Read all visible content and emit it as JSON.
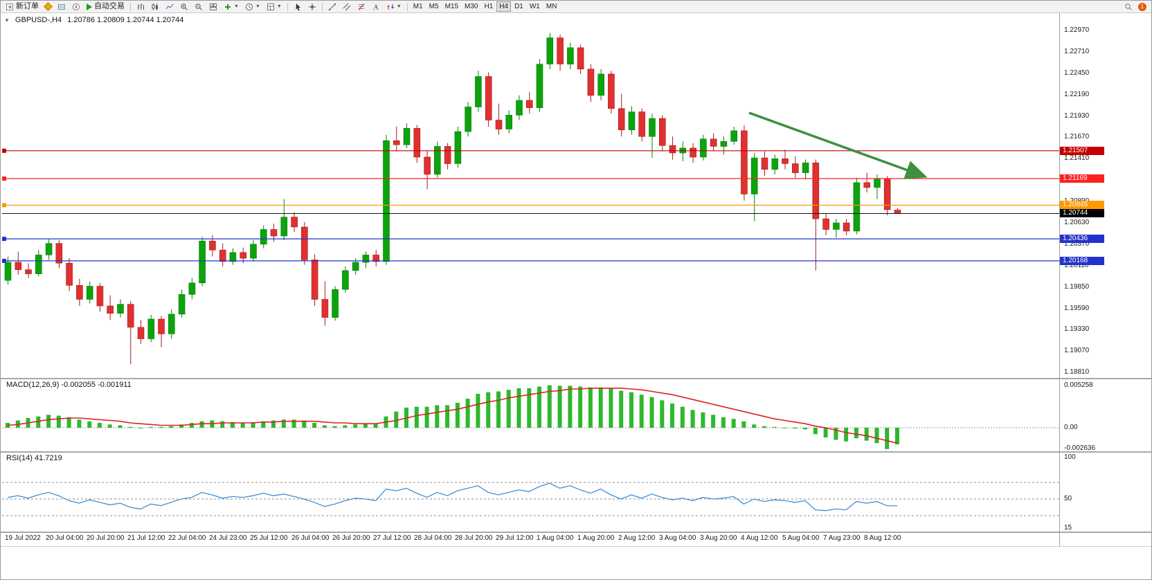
{
  "toolbar": {
    "new_order": "新订单",
    "autotrading": "自动交易",
    "timeframes": [
      "M1",
      "M5",
      "M15",
      "M30",
      "H1",
      "H4",
      "D1",
      "W1",
      "MN"
    ],
    "active_timeframe": "H4",
    "notification_count": "1"
  },
  "chart": {
    "title_symbol": "GBPUSD-,H4",
    "title_ohlc": "1.20786 1.20809 1.20744 1.20744"
  },
  "chart_data": {
    "type": "candlestick",
    "symbol": "GBPUSD-",
    "period": "H4",
    "ohlc_display": {
      "open": "1.20786",
      "high": "1.20809",
      "low": "1.20744",
      "close": "1.20744"
    },
    "colors": {
      "up": "#0ca30c",
      "up_border": "#0a7d0a",
      "down": "#e03030",
      "down_border": "#a21c1c",
      "macd_hist": "#2db82d",
      "macd_signal": "#e02020",
      "rsi_line": "#3f8fd6",
      "arrow": "#3f8f3f"
    },
    "price_axis": {
      "view_max": 1.2318,
      "view_min": 1.18745,
      "ticks": [
        "1.22970",
        "1.22710",
        "1.22450",
        "1.22190",
        "1.21930",
        "1.21670",
        "1.21410",
        "1.21150",
        "1.20890",
        "1.20630",
        "1.20370",
        "1.20110",
        "1.19850",
        "1.19590",
        "1.19330",
        "1.19070",
        "1.18810"
      ]
    },
    "x_labels": [
      "19 Jul 2022",
      "20 Jul 04:00",
      "20 Jul 20:00",
      "21 Jul 12:00",
      "22 Jul 04:00",
      "24 Jul 23:00",
      "25 Jul 12:00",
      "26 Jul 04:00",
      "26 Jul 20:00",
      "27 Jul 12:00",
      "28 Jul 04:00",
      "28 Jul 20:00",
      "29 Jul 12:00",
      "1 Aug 04:00",
      "1 Aug 20:00",
      "2 Aug 12:00",
      "3 Aug 04:00",
      "3 Aug 20:00",
      "4 Aug 12:00",
      "5 Aug 04:00",
      "7 Aug 23:00",
      "8 Aug 12:00"
    ],
    "candles": [
      [
        1.1993,
        1.2022,
        1.1988,
        1.2015
      ],
      [
        1.2015,
        1.2028,
        1.2,
        1.2006
      ],
      [
        1.2006,
        1.2014,
        1.1996,
        1.2001
      ],
      [
        1.2001,
        1.203,
        1.1998,
        1.2024
      ],
      [
        1.2024,
        1.2043,
        1.2018,
        1.2038
      ],
      [
        1.2038,
        1.2042,
        1.2008,
        1.2014
      ],
      [
        1.2014,
        1.202,
        1.198,
        1.1987
      ],
      [
        1.1987,
        1.1995,
        1.1962,
        1.197
      ],
      [
        1.197,
        1.1992,
        1.1965,
        1.1986
      ],
      [
        1.1986,
        1.199,
        1.1955,
        1.1962
      ],
      [
        1.1962,
        1.1975,
        1.1945,
        1.1953
      ],
      [
        1.1953,
        1.197,
        1.1948,
        1.1964
      ],
      [
        1.1964,
        1.1968,
        1.1891,
        1.1936
      ],
      [
        1.1936,
        1.1945,
        1.1916,
        1.1922
      ],
      [
        1.1922,
        1.1951,
        1.1918,
        1.1946
      ],
      [
        1.1946,
        1.195,
        1.1912,
        1.1928
      ],
      [
        1.1928,
        1.1958,
        1.1922,
        1.1952
      ],
      [
        1.1952,
        1.1982,
        1.1948,
        1.1976
      ],
      [
        1.1976,
        1.1996,
        1.197,
        1.199
      ],
      [
        1.199,
        1.2046,
        1.1986,
        1.2041
      ],
      [
        1.2041,
        1.2048,
        1.2022,
        1.203
      ],
      [
        1.203,
        1.2038,
        1.201,
        1.2016
      ],
      [
        1.2016,
        1.2032,
        1.2012,
        1.2027
      ],
      [
        1.2027,
        1.2033,
        1.2014,
        1.202
      ],
      [
        1.202,
        1.2042,
        1.2016,
        1.2037
      ],
      [
        1.2037,
        1.206,
        1.2032,
        1.2055
      ],
      [
        1.2055,
        1.2062,
        1.204,
        1.2047
      ],
      [
        1.2047,
        1.2092,
        1.2042,
        1.207
      ],
      [
        1.207,
        1.2076,
        1.2052,
        1.2058
      ],
      [
        1.2058,
        1.2064,
        1.2012,
        1.2018
      ],
      [
        1.2018,
        1.2025,
        1.1962,
        1.197
      ],
      [
        1.197,
        1.1992,
        1.1938,
        1.1948
      ],
      [
        1.1948,
        1.1986,
        1.1944,
        1.1982
      ],
      [
        1.1982,
        1.201,
        1.1978,
        1.2005
      ],
      [
        1.2005,
        1.202,
        1.2,
        1.2015
      ],
      [
        1.2015,
        1.2028,
        1.2008,
        1.2024
      ],
      [
        1.2024,
        1.203,
        1.201,
        1.2016
      ],
      [
        1.2016,
        1.217,
        1.2012,
        1.2163
      ],
      [
        1.2163,
        1.218,
        1.215,
        1.2158
      ],
      [
        1.2158,
        1.2184,
        1.2154,
        1.2178
      ],
      [
        1.2178,
        1.2182,
        1.2136,
        1.2143
      ],
      [
        1.2143,
        1.215,
        1.2104,
        1.2122
      ],
      [
        1.2122,
        1.2162,
        1.2118,
        1.2156
      ],
      [
        1.2156,
        1.216,
        1.2128,
        1.2135
      ],
      [
        1.2135,
        1.218,
        1.213,
        1.2174
      ],
      [
        1.2174,
        1.221,
        1.2168,
        1.2204
      ],
      [
        1.2204,
        1.2248,
        1.2198,
        1.2241
      ],
      [
        1.2241,
        1.2246,
        1.218,
        1.2188
      ],
      [
        1.2188,
        1.2208,
        1.217,
        1.2177
      ],
      [
        1.2177,
        1.22,
        1.2172,
        1.2194
      ],
      [
        1.2194,
        1.2218,
        1.2188,
        1.2212
      ],
      [
        1.2212,
        1.2222,
        1.2196,
        1.2203
      ],
      [
        1.2203,
        1.2262,
        1.2198,
        1.2256
      ],
      [
        1.2256,
        1.2294,
        1.225,
        1.2288
      ],
      [
        1.2288,
        1.2292,
        1.2248,
        1.2256
      ],
      [
        1.2256,
        1.2282,
        1.225,
        1.2276
      ],
      [
        1.2276,
        1.228,
        1.2244,
        1.225
      ],
      [
        1.225,
        1.2256,
        1.221,
        1.2218
      ],
      [
        1.2218,
        1.225,
        1.2212,
        1.2244
      ],
      [
        1.2244,
        1.2248,
        1.2196,
        1.2202
      ],
      [
        1.2202,
        1.222,
        1.2168,
        1.2176
      ],
      [
        1.2176,
        1.2205,
        1.217,
        1.2198
      ],
      [
        1.2198,
        1.2202,
        1.2162,
        1.2168
      ],
      [
        1.2168,
        1.2196,
        1.2142,
        1.219
      ],
      [
        1.219,
        1.2194,
        1.215,
        1.2157
      ],
      [
        1.2157,
        1.2168,
        1.214,
        1.2148
      ],
      [
        1.2148,
        1.2162,
        1.2138,
        1.2154
      ],
      [
        1.2154,
        1.216,
        1.2136,
        1.2143
      ],
      [
        1.2143,
        1.217,
        1.2139,
        1.2165
      ],
      [
        1.2165,
        1.2172,
        1.215,
        1.2156
      ],
      [
        1.2156,
        1.2168,
        1.2146,
        1.2162
      ],
      [
        1.2162,
        1.218,
        1.2158,
        1.2175
      ],
      [
        1.2175,
        1.2182,
        1.209,
        1.2098
      ],
      [
        1.2098,
        1.2148,
        1.2065,
        1.2142
      ],
      [
        1.2142,
        1.215,
        1.212,
        1.2128
      ],
      [
        1.2128,
        1.2146,
        1.2122,
        1.2141
      ],
      [
        1.2141,
        1.2152,
        1.2128,
        1.2135
      ],
      [
        1.2135,
        1.2144,
        1.2118,
        1.2124
      ],
      [
        1.2124,
        1.214,
        1.2116,
        1.2136
      ],
      [
        1.2136,
        1.214,
        1.2005,
        1.2068
      ],
      [
        1.2068,
        1.2075,
        1.2048,
        1.2055
      ],
      [
        1.2055,
        1.2068,
        1.2045,
        1.2063
      ],
      [
        1.2063,
        1.2068,
        1.2048,
        1.2053
      ],
      [
        1.2053,
        1.2118,
        1.2049,
        1.2112
      ],
      [
        1.2112,
        1.2124,
        1.21,
        1.2106
      ],
      [
        1.2106,
        1.2122,
        1.2092,
        1.2117
      ],
      [
        1.2117,
        1.212,
        1.2072,
        1.2079
      ],
      [
        1.20786,
        1.20809,
        1.20744,
        1.20744
      ]
    ],
    "hlines": [
      {
        "price": 1.21507,
        "label": "1.21507",
        "color": "#c40000"
      },
      {
        "price": 1.21169,
        "label": "1.21169",
        "color": "#ff2020"
      },
      {
        "price": 1.20845,
        "label": "1.20845",
        "color": "#ff9900"
      },
      {
        "price": 1.20436,
        "label": "1.20436",
        "color": "#2233cc"
      },
      {
        "price": 1.20168,
        "label": "1.20168",
        "color": "#2233cc"
      }
    ],
    "current_price": {
      "price": 1.20744,
      "label": "1.20744",
      "color": "#111111"
    },
    "trend_arrow": {
      "from": {
        "index": 72.5,
        "price": 1.2197
      },
      "to": {
        "index": 89.5,
        "price": 1.212
      }
    },
    "macd": {
      "label": "MACD(12,26,9) -0.002055 -0.001911",
      "params": "12,26,9",
      "value": -0.002055,
      "signal_value": -0.001911,
      "scale_max": "0.005258",
      "scale_zero": "0.00",
      "scale_min": "-0.002636",
      "histogram": [
        0.0006,
        0.0009,
        0.0012,
        0.0014,
        0.0016,
        0.0015,
        0.0013,
        0.001,
        0.0008,
        0.0006,
        0.0004,
        0.0003,
        0.0001,
        0.0,
        0.0001,
        0.0001,
        0.0002,
        0.0004,
        0.0006,
        0.0008,
        0.0009,
        0.0008,
        0.0007,
        0.0006,
        0.0007,
        0.0008,
        0.0009,
        0.001,
        0.001,
        0.0009,
        0.0006,
        0.0003,
        0.0002,
        0.0003,
        0.0004,
        0.0005,
        0.0005,
        0.0014,
        0.002,
        0.0025,
        0.0026,
        0.0026,
        0.0028,
        0.0028,
        0.0031,
        0.0036,
        0.0042,
        0.0044,
        0.0045,
        0.0047,
        0.0049,
        0.0049,
        0.0051,
        0.00526,
        0.0052,
        0.0052,
        0.0051,
        0.005,
        0.005,
        0.0049,
        0.0046,
        0.0044,
        0.0041,
        0.0038,
        0.0034,
        0.003,
        0.0026,
        0.0022,
        0.0019,
        0.0016,
        0.0013,
        0.0011,
        0.0008,
        0.0004,
        0.0002,
        0.0001,
        0.0,
        -0.0001,
        -0.0002,
        -0.0008,
        -0.0012,
        -0.0015,
        -0.0017,
        -0.0013,
        -0.0016,
        -0.0019,
        -0.00264,
        -0.00206
      ],
      "signal": [
        0.0003,
        0.0004,
        0.0006,
        0.0008,
        0.001,
        0.0011,
        0.0012,
        0.0012,
        0.0011,
        0.001,
        0.0009,
        0.0008,
        0.0006,
        0.0005,
        0.0004,
        0.0003,
        0.0003,
        0.0003,
        0.0004,
        0.0005,
        0.0005,
        0.0006,
        0.0006,
        0.0006,
        0.0006,
        0.0007,
        0.0007,
        0.0008,
        0.0008,
        0.0008,
        0.0008,
        0.0007,
        0.0006,
        0.0006,
        0.0005,
        0.0005,
        0.0005,
        0.0007,
        0.0009,
        0.0012,
        0.0015,
        0.0017,
        0.0019,
        0.0021,
        0.0023,
        0.0026,
        0.0029,
        0.0032,
        0.0034,
        0.0037,
        0.0039,
        0.0041,
        0.0043,
        0.0045,
        0.0046,
        0.0048,
        0.0048,
        0.0049,
        0.0049,
        0.0049,
        0.0049,
        0.0048,
        0.0047,
        0.0045,
        0.0043,
        0.0041,
        0.0038,
        0.0035,
        0.0032,
        0.0029,
        0.0026,
        0.0023,
        0.002,
        0.0017,
        0.0014,
        0.0011,
        0.0009,
        0.0007,
        0.0005,
        0.0002,
        0.0,
        -0.0003,
        -0.0006,
        -0.0008,
        -0.001,
        -0.0013,
        -0.0016,
        -0.00191
      ]
    },
    "rsi": {
      "label": "RSI(14) 41.7219",
      "period": 14,
      "value": 41.7219,
      "scale_labels": [
        "100",
        "50",
        "15"
      ],
      "levels": [
        70,
        50,
        30
      ],
      "values": [
        52,
        54,
        51,
        55,
        58,
        54,
        48,
        45,
        49,
        46,
        43,
        45,
        40,
        38,
        44,
        42,
        46,
        50,
        52,
        58,
        55,
        51,
        53,
        52,
        54,
        57,
        54,
        56,
        53,
        50,
        46,
        41,
        44,
        48,
        51,
        50,
        48,
        62,
        60,
        63,
        57,
        52,
        58,
        54,
        60,
        63,
        66,
        58,
        55,
        58,
        61,
        59,
        65,
        69,
        63,
        66,
        61,
        57,
        62,
        55,
        50,
        55,
        51,
        56,
        52,
        49,
        51,
        48,
        52,
        50,
        51,
        53,
        44,
        50,
        47,
        49,
        48,
        46,
        48,
        37,
        36,
        38,
        37,
        47,
        45,
        47,
        42,
        41.72
      ]
    }
  }
}
